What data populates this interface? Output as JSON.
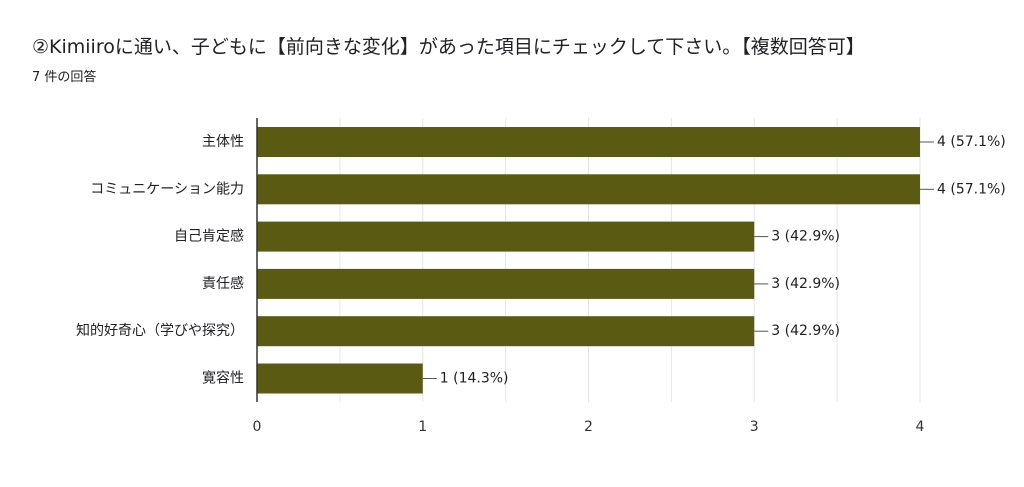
{
  "title": "②Kimiiroに通い、子どもに【前向きな変化】があった項目にチェックして下さい。【複数回答可】",
  "subtitle": "7 件の回答",
  "colors": {
    "bar": "#5a5a12",
    "grid": "#e6e6e6",
    "axis": "#333333",
    "leader": "#555555"
  },
  "chart_data": {
    "type": "bar",
    "orientation": "horizontal",
    "categories": [
      "主体性",
      "コミュニケーション能力",
      "自己肯定感",
      "責任感",
      "知的好奇心（学びや探究）",
      "寛容性"
    ],
    "values": [
      4,
      4,
      3,
      3,
      3,
      1
    ],
    "data_labels": [
      "4 (57.1%)",
      "4 (57.1%)",
      "3 (42.9%)",
      "3 (42.9%)",
      "3 (42.9%)",
      "1 (14.3%)"
    ],
    "xlim": [
      0,
      4
    ],
    "xticks": [
      0,
      1,
      2,
      3,
      4
    ],
    "grid": true,
    "legend": "none"
  }
}
